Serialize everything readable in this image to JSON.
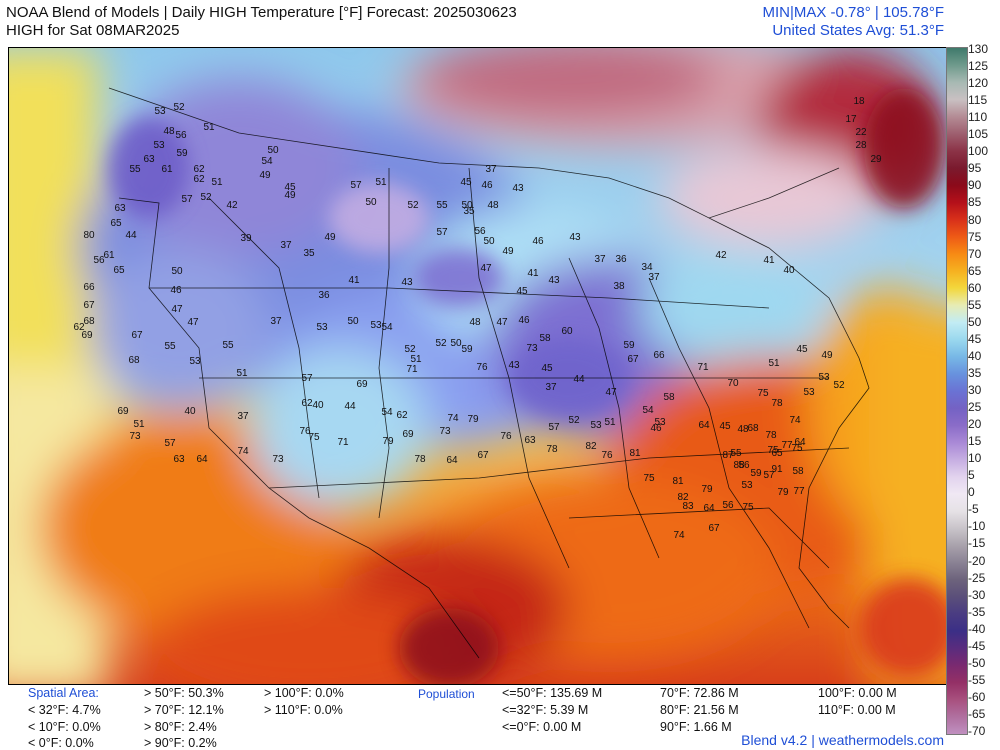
{
  "header": {
    "title_line1": "NOAA Blend of Models | Daily HIGH Temperature [°F] Forecast: 2025030623",
    "title_line2": "HIGH for Sat 08MAR2025",
    "minmax": "MIN|MAX -0.78°  |  105.78°F",
    "us_avg": "United States Avg: 51.3°F"
  },
  "colorbar": {
    "ticks": [
      "130",
      "125",
      "120",
      "115",
      "110",
      "105",
      "100",
      "95",
      "90",
      "85",
      "80",
      "75",
      "70",
      "65",
      "60",
      "55",
      "50",
      "45",
      "40",
      "35",
      "30",
      "25",
      "20",
      "15",
      "10",
      "5",
      "0",
      "-5",
      "-10",
      "-15",
      "-20",
      "-25",
      "-30",
      "-35",
      "-40",
      "-45",
      "-50",
      "-55",
      "-60",
      "-65",
      "-70"
    ],
    "colors": [
      "#3f7a6b",
      "#6f9a8c",
      "#a7b9b3",
      "#c9c0c2",
      "#b48c95",
      "#9e5f6f",
      "#8c3347",
      "#7a1a2e",
      "#8b0a1a",
      "#b4101a",
      "#d8301a",
      "#ee5a16",
      "#f78a14",
      "#f6b120",
      "#f3d73c",
      "#e7ecb4",
      "#c2ecf4",
      "#9ad8ee",
      "#78b8e6",
      "#6892de",
      "#6a73d4",
      "#7462c4",
      "#8a6cc8",
      "#a989d6",
      "#c6aee2",
      "#e2d3ee",
      "#f0e8f4",
      "#e6e2e6",
      "#c9c4ca",
      "#a9a2ac",
      "#8a8294",
      "#6d637c",
      "#5b4f7a",
      "#4a3c82",
      "#3b2f86",
      "#5a2c7e",
      "#7a2a70",
      "#943066",
      "#a8507e",
      "#b070a0",
      "#c090c0"
    ]
  },
  "stats": {
    "spatial_label": "Spatial Area:",
    "lt32": "< 32°F: 4.7%",
    "lt10": "< 10°F: 0.0%",
    "lt0": "< 0°F: 0.0%",
    "gt50": "> 50°F: 50.3%",
    "gt70": "> 70°F: 12.1%",
    "gt80": "> 80°F: 2.4%",
    "gt90": "> 90°F: 0.2%",
    "gt100": "> 100°F: 0.0%",
    "gt110": "> 110°F: 0.0%",
    "population_label": "Population",
    "pop_le50": "<=50°F: 135.69 M",
    "pop_le32": "<=32°F: 5.39 M",
    "pop_le0": "<=0°F: 0.00 M",
    "pop_70": "70°F: 72.86 M",
    "pop_80": "80°F: 21.56 M",
    "pop_90": "90°F: 1.66 M",
    "pop_100": "100°F: 0.00 M",
    "pop_110": "110°F: 0.00 M"
  },
  "footer": "Blend v4.2 | weathermodels.com",
  "map_values": [
    {
      "v": "52"
    },
    {
      "v": "53"
    },
    {
      "v": "48"
    },
    {
      "v": "51"
    },
    {
      "v": "56"
    },
    {
      "v": "53"
    },
    {
      "v": "50"
    },
    {
      "v": "59"
    },
    {
      "v": "63"
    },
    {
      "v": "61"
    },
    {
      "v": "62"
    },
    {
      "v": "62"
    },
    {
      "v": "55"
    },
    {
      "v": "54"
    },
    {
      "v": "51"
    },
    {
      "v": "63"
    },
    {
      "v": "65"
    },
    {
      "v": "57"
    },
    {
      "v": "52"
    },
    {
      "v": "49"
    },
    {
      "v": "45"
    },
    {
      "v": "49"
    },
    {
      "v": "57"
    },
    {
      "v": "51"
    },
    {
      "v": "50"
    },
    {
      "v": "45"
    },
    {
      "v": "46"
    },
    {
      "v": "37"
    },
    {
      "v": "35"
    },
    {
      "v": "43"
    },
    {
      "v": "56"
    },
    {
      "v": "44"
    },
    {
      "v": "42"
    },
    {
      "v": "52"
    },
    {
      "v": "55"
    },
    {
      "v": "50"
    },
    {
      "v": "48"
    },
    {
      "v": "80"
    },
    {
      "v": "61"
    },
    {
      "v": "65"
    },
    {
      "v": "39"
    },
    {
      "v": "37"
    },
    {
      "v": "35"
    },
    {
      "v": "49"
    },
    {
      "v": "57"
    },
    {
      "v": "56"
    },
    {
      "v": "50"
    },
    {
      "v": "49"
    },
    {
      "v": "46"
    },
    {
      "v": "43"
    },
    {
      "v": "37"
    },
    {
      "v": "36"
    },
    {
      "v": "34"
    },
    {
      "v": "18"
    },
    {
      "v": "17"
    },
    {
      "v": "22"
    },
    {
      "v": "28"
    },
    {
      "v": "29"
    },
    {
      "v": "66"
    },
    {
      "v": "67"
    },
    {
      "v": "68"
    },
    {
      "v": "69"
    },
    {
      "v": "62"
    },
    {
      "v": "50"
    },
    {
      "v": "46"
    },
    {
      "v": "47"
    },
    {
      "v": "36"
    },
    {
      "v": "41"
    },
    {
      "v": "43"
    },
    {
      "v": "47"
    },
    {
      "v": "41"
    },
    {
      "v": "45"
    },
    {
      "v": "43"
    },
    {
      "v": "38"
    },
    {
      "v": "37"
    },
    {
      "v": "42"
    },
    {
      "v": "41"
    },
    {
      "v": "40"
    },
    {
      "v": "67"
    },
    {
      "v": "68"
    },
    {
      "v": "47"
    },
    {
      "v": "55"
    },
    {
      "v": "37"
    },
    {
      "v": "53"
    },
    {
      "v": "50"
    },
    {
      "v": "53"
    },
    {
      "v": "54"
    },
    {
      "v": "52"
    },
    {
      "v": "51"
    },
    {
      "v": "52"
    },
    {
      "v": "50"
    },
    {
      "v": "48"
    },
    {
      "v": "47"
    },
    {
      "v": "46"
    },
    {
      "v": "58"
    },
    {
      "v": "60"
    },
    {
      "v": "59"
    },
    {
      "v": "67"
    },
    {
      "v": "66"
    },
    {
      "v": "71"
    },
    {
      "v": "45"
    },
    {
      "v": "49"
    },
    {
      "v": "51"
    },
    {
      "v": "53"
    },
    {
      "v": "52"
    },
    {
      "v": "53"
    },
    {
      "v": "53"
    },
    {
      "v": "55"
    },
    {
      "v": "51"
    },
    {
      "v": "57"
    },
    {
      "v": "62"
    },
    {
      "v": "69"
    },
    {
      "v": "71"
    },
    {
      "v": "59"
    },
    {
      "v": "76"
    },
    {
      "v": "73"
    },
    {
      "v": "43"
    },
    {
      "v": "45"
    },
    {
      "v": "37"
    },
    {
      "v": "44"
    },
    {
      "v": "47"
    },
    {
      "v": "51"
    },
    {
      "v": "53"
    },
    {
      "v": "54"
    },
    {
      "v": "58"
    },
    {
      "v": "64"
    },
    {
      "v": "70"
    },
    {
      "v": "75"
    },
    {
      "v": "78"
    },
    {
      "v": "74"
    },
    {
      "v": "64"
    },
    {
      "v": "75"
    },
    {
      "v": "68"
    },
    {
      "v": "69"
    },
    {
      "v": "51"
    },
    {
      "v": "40"
    },
    {
      "v": "37"
    },
    {
      "v": "40"
    },
    {
      "v": "44"
    },
    {
      "v": "54"
    },
    {
      "v": "62"
    },
    {
      "v": "69"
    },
    {
      "v": "73"
    },
    {
      "v": "74"
    },
    {
      "v": "79"
    },
    {
      "v": "76"
    },
    {
      "v": "63"
    },
    {
      "v": "57"
    },
    {
      "v": "52"
    },
    {
      "v": "53"
    },
    {
      "v": "46"
    },
    {
      "v": "45"
    },
    {
      "v": "48"
    },
    {
      "v": "55"
    },
    {
      "v": "56"
    },
    {
      "v": "65"
    },
    {
      "v": "78"
    },
    {
      "v": "77"
    },
    {
      "v": "75"
    },
    {
      "v": "58"
    },
    {
      "v": "57"
    },
    {
      "v": "59"
    },
    {
      "v": "53"
    },
    {
      "v": "56"
    },
    {
      "v": "64"
    },
    {
      "v": "67"
    },
    {
      "v": "74"
    },
    {
      "v": "75"
    },
    {
      "v": "79"
    },
    {
      "v": "77"
    },
    {
      "v": "73"
    },
    {
      "v": "57"
    },
    {
      "v": "63"
    },
    {
      "v": "64"
    },
    {
      "v": "74"
    },
    {
      "v": "73"
    },
    {
      "v": "76"
    },
    {
      "v": "75"
    },
    {
      "v": "71"
    },
    {
      "v": "79"
    },
    {
      "v": "78"
    },
    {
      "v": "64"
    },
    {
      "v": "67"
    },
    {
      "v": "78"
    },
    {
      "v": "82"
    },
    {
      "v": "76"
    },
    {
      "v": "81"
    },
    {
      "v": "75"
    },
    {
      "v": "81"
    },
    {
      "v": "82"
    },
    {
      "v": "83"
    },
    {
      "v": "79"
    },
    {
      "v": "87"
    },
    {
      "v": "88"
    },
    {
      "v": "91"
    }
  ]
}
